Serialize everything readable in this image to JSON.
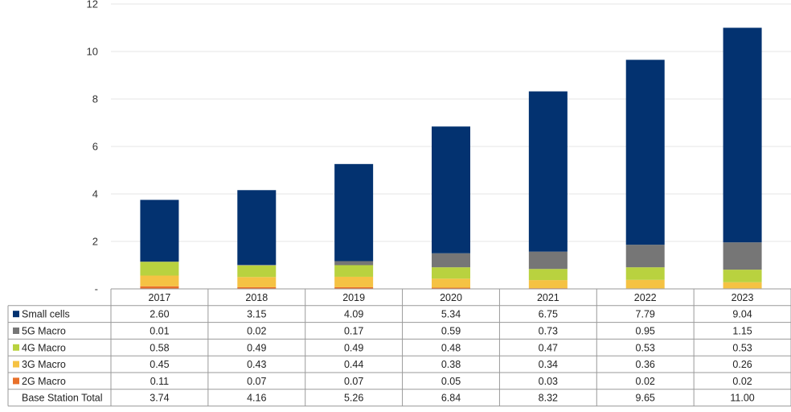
{
  "chart_data": {
    "type": "bar",
    "stacked": true,
    "categories": [
      "2017",
      "2018",
      "2019",
      "2020",
      "2021",
      "2022",
      "2023"
    ],
    "ylim": [
      0,
      12
    ],
    "yticks": [
      {
        "value": 0,
        "label": "-"
      },
      {
        "value": 2,
        "label": "2"
      },
      {
        "value": 4,
        "label": "4"
      },
      {
        "value": 6,
        "label": "6"
      },
      {
        "value": 8,
        "label": "8"
      },
      {
        "value": 10,
        "label": "10"
      },
      {
        "value": 12,
        "label": "12"
      }
    ],
    "grid": true,
    "legend": "data-table",
    "series": [
      {
        "name": "2G Macro",
        "color": "#E8702A",
        "values": [
          0.11,
          0.07,
          0.07,
          0.05,
          0.03,
          0.02,
          0.02
        ],
        "labels": [
          "0.11",
          "0.07",
          "0.07",
          "0.05",
          "0.03",
          "0.02",
          "0.02"
        ]
      },
      {
        "name": "3G Macro",
        "color": "#F5C243",
        "values": [
          0.45,
          0.43,
          0.44,
          0.38,
          0.34,
          0.36,
          0.26
        ],
        "labels": [
          "0.45",
          "0.43",
          "0.44",
          "0.38",
          "0.34",
          "0.36",
          "0.26"
        ]
      },
      {
        "name": "4G Macro",
        "color": "#B9D23F",
        "values": [
          0.58,
          0.49,
          0.49,
          0.48,
          0.47,
          0.53,
          0.53
        ],
        "labels": [
          "0.58",
          "0.49",
          "0.49",
          "0.48",
          "0.47",
          "0.53",
          "0.53"
        ]
      },
      {
        "name": "5G Macro",
        "color": "#767676",
        "values": [
          0.01,
          0.02,
          0.17,
          0.59,
          0.73,
          0.95,
          1.15
        ],
        "labels": [
          "0.01",
          "0.02",
          "0.17",
          "0.59",
          "0.73",
          "0.95",
          "1.15"
        ]
      },
      {
        "name": "Small cells",
        "color": "#033270",
        "values": [
          2.6,
          3.15,
          4.09,
          5.34,
          6.75,
          7.79,
          9.04
        ],
        "labels": [
          "2.60",
          "3.15",
          "4.09",
          "5.34",
          "6.75",
          "7.79",
          "9.04"
        ]
      }
    ],
    "table_rows": [
      {
        "label": "Small cells",
        "color": "#033270",
        "values": [
          "2.60",
          "3.15",
          "4.09",
          "5.34",
          "6.75",
          "7.79",
          "9.04"
        ]
      },
      {
        "label": "5G Macro",
        "color": "#767676",
        "values": [
          "0.01",
          "0.02",
          "0.17",
          "0.59",
          "0.73",
          "0.95",
          "1.15"
        ]
      },
      {
        "label": "4G Macro",
        "color": "#B9D23F",
        "values": [
          "0.58",
          "0.49",
          "0.49",
          "0.48",
          "0.47",
          "0.53",
          "0.53"
        ]
      },
      {
        "label": "3G Macro",
        "color": "#F5C243",
        "values": [
          "0.45",
          "0.43",
          "0.44",
          "0.38",
          "0.34",
          "0.36",
          "0.26"
        ]
      },
      {
        "label": "2G Macro",
        "color": "#E8702A",
        "values": [
          "0.11",
          "0.07",
          "0.07",
          "0.05",
          "0.03",
          "0.02",
          "0.02"
        ]
      },
      {
        "label": "Base Station Total",
        "color": null,
        "values": [
          "3.74",
          "4.16",
          "5.26",
          "6.84",
          "8.32",
          "9.65",
          "11.00"
        ]
      }
    ]
  }
}
